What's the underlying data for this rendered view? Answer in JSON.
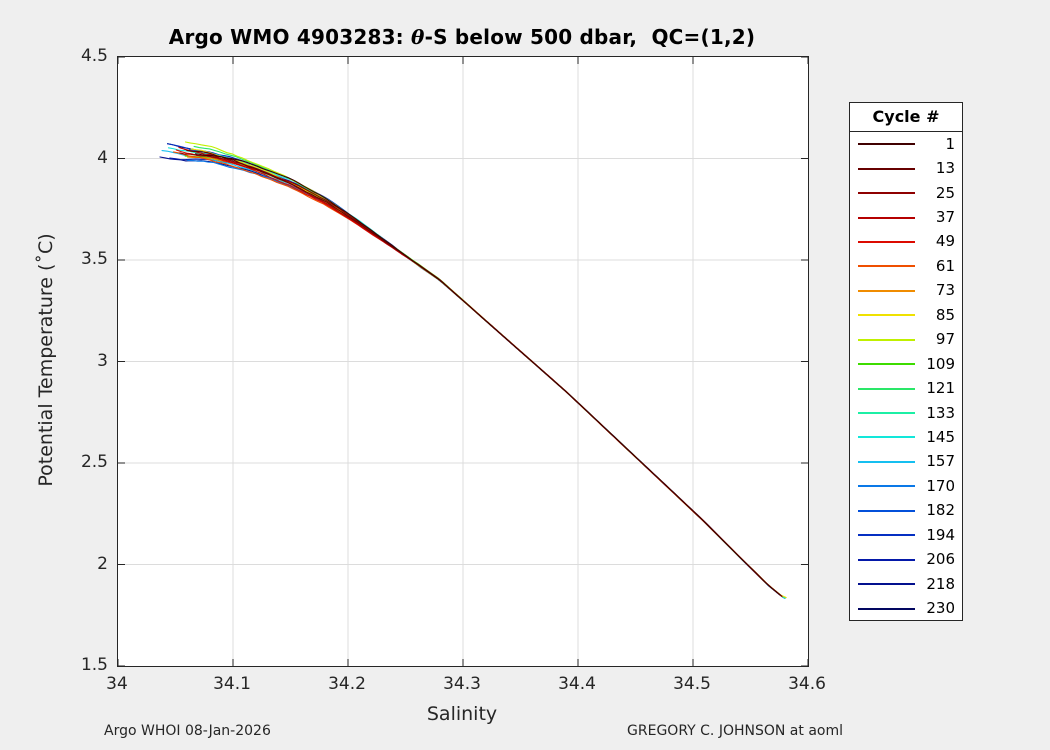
{
  "figure": {
    "background": "#efefef",
    "title_prefix": "Argo WMO 4903283: ",
    "title_theta": "θ",
    "title_suffix": "-S below 500 dbar,  QC=(1,2)",
    "footer_left": "Argo WHOI 08-Jan-2026",
    "footer_right": "GREGORY C. JOHNSON at aoml"
  },
  "chart_data": {
    "type": "line",
    "title": "Argo WMO 4903283: θ-S below 500 dbar,  QC=(1,2)",
    "xlabel": "Salinity",
    "ylabel": "Potential Temperature (˚C)",
    "xlim": [
      34,
      34.6
    ],
    "ylim": [
      1.5,
      4.5
    ],
    "grid": true,
    "grid_color": "#dcdcdc",
    "axis_color": "#262626",
    "legend_title": "Cycle #",
    "legend_position": "right-outside",
    "xticks": [
      {
        "value": 34.0,
        "label": "34"
      },
      {
        "value": 34.1,
        "label": "34.1"
      },
      {
        "value": 34.2,
        "label": "34.2"
      },
      {
        "value": 34.3,
        "label": "34.3"
      },
      {
        "value": 34.4,
        "label": "34.4"
      },
      {
        "value": 34.5,
        "label": "34.5"
      },
      {
        "value": 34.6,
        "label": "34.6"
      }
    ],
    "yticks": [
      {
        "value": 1.5,
        "label": "1.5"
      },
      {
        "value": 2.0,
        "label": "2"
      },
      {
        "value": 2.5,
        "label": "2.5"
      },
      {
        "value": 3.0,
        "label": "3"
      },
      {
        "value": 3.5,
        "label": "3.5"
      },
      {
        "value": 4.0,
        "label": "4"
      },
      {
        "value": 4.5,
        "label": "4.5"
      }
    ],
    "series": [
      {
        "name": "1",
        "color": "#400000"
      },
      {
        "name": "13",
        "color": "#670000"
      },
      {
        "name": "25",
        "color": "#8E0000"
      },
      {
        "name": "37",
        "color": "#B50000"
      },
      {
        "name": "49",
        "color": "#DC0A00"
      },
      {
        "name": "61",
        "color": "#EF4F00"
      },
      {
        "name": "73",
        "color": "#F08C00"
      },
      {
        "name": "85",
        "color": "#EFE100"
      },
      {
        "name": "97",
        "color": "#C0F000"
      },
      {
        "name": "109",
        "color": "#3EDC00"
      },
      {
        "name": "121",
        "color": "#2AE768"
      },
      {
        "name": "133",
        "color": "#1CEFA5"
      },
      {
        "name": "145",
        "color": "#12E7DA"
      },
      {
        "name": "157",
        "color": "#15BFF0"
      },
      {
        "name": "170",
        "color": "#0A78E7"
      },
      {
        "name": "182",
        "color": "#0350DA"
      },
      {
        "name": "194",
        "color": "#052FC2"
      },
      {
        "name": "206",
        "color": "#0419A9"
      },
      {
        "name": "218",
        "color": "#03108E"
      },
      {
        "name": "230",
        "color": "#020660"
      }
    ],
    "main_curve": {
      "salinity": [
        34.035,
        34.06,
        34.08,
        34.1,
        34.12,
        34.15,
        34.18,
        34.21,
        34.24,
        34.26,
        34.28,
        34.3,
        34.33,
        34.36,
        34.39,
        34.42,
        34.45,
        34.48,
        34.51,
        34.54,
        34.565,
        34.579
      ],
      "theta": [
        4.035,
        4.01,
        4.0,
        3.975,
        3.94,
        3.875,
        3.79,
        3.68,
        3.56,
        3.48,
        3.4,
        3.3,
        3.15,
        3.0,
        2.85,
        2.69,
        2.53,
        2.37,
        2.21,
        2.04,
        1.9,
        1.835
      ]
    },
    "spread": {
      "converge_salinity": 34.26,
      "start_salinity_min": 34.032,
      "start_salinity_max": 34.068,
      "tip_theta_min": 4.0,
      "tip_theta_max": 4.11,
      "end_point": {
        "salinity": 34.58,
        "theta": 1.84
      }
    }
  }
}
